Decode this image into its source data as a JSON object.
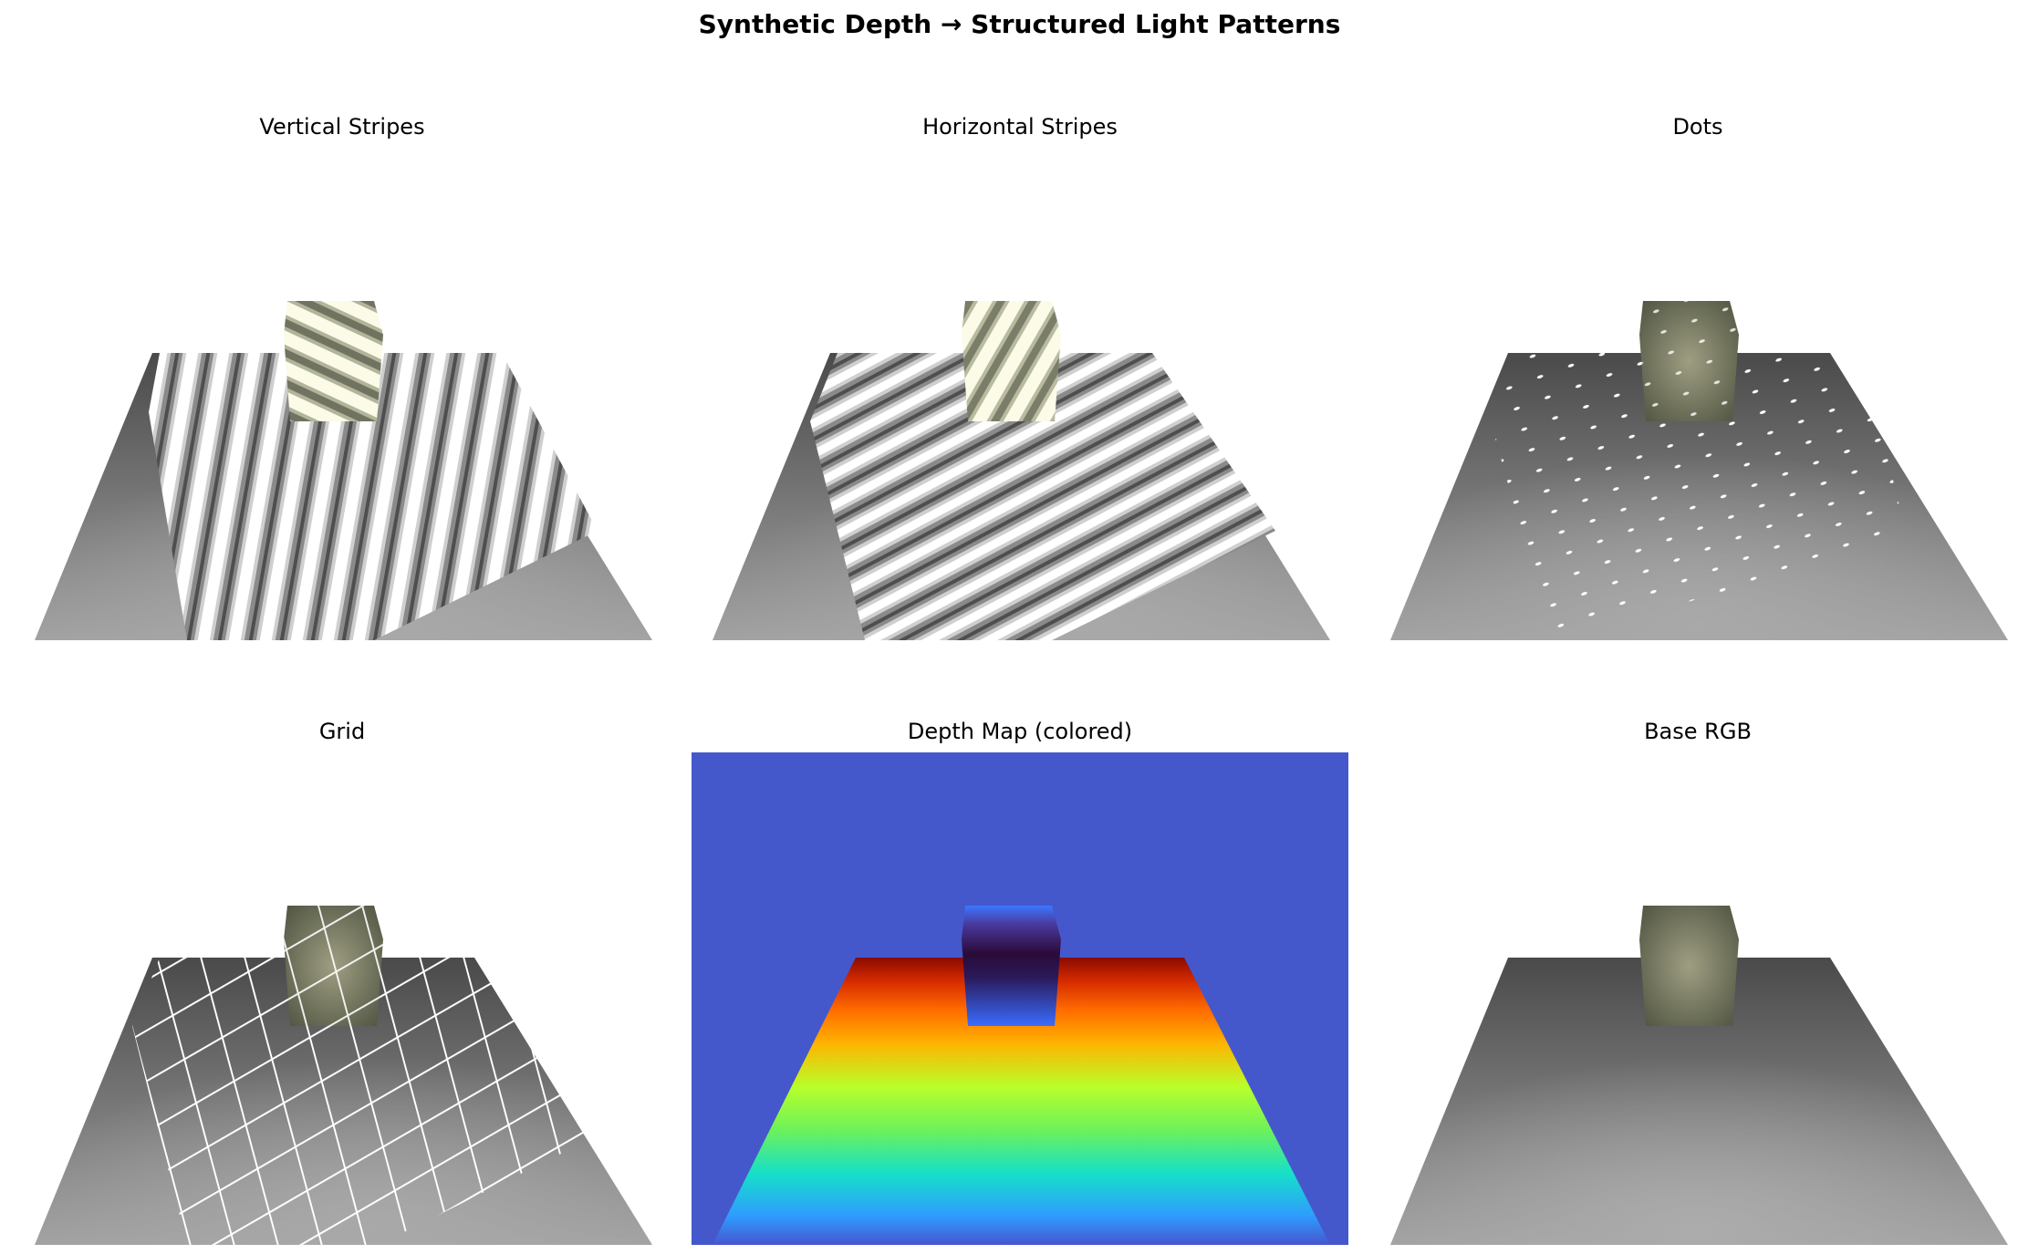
{
  "figure": {
    "title": "Synthetic Depth → Structured Light Patterns"
  },
  "panels": [
    {
      "title": "Vertical Stripes",
      "pattern": "vertical-stripes"
    },
    {
      "title": "Horizontal Stripes",
      "pattern": "horizontal-stripes"
    },
    {
      "title": "Dots",
      "pattern": "dots"
    },
    {
      "title": "Grid",
      "pattern": "grid"
    },
    {
      "title": "Depth Map (colored)",
      "pattern": "depth-colored"
    },
    {
      "title": "Base RGB",
      "pattern": "base-rgb"
    }
  ],
  "colors": {
    "background_depth": "#4458cb",
    "floor_far": "#4a4a4a",
    "floor_near": "#a6a6a6",
    "cube_face": "#9a9a7e",
    "cube_edge": "#4f5340"
  }
}
